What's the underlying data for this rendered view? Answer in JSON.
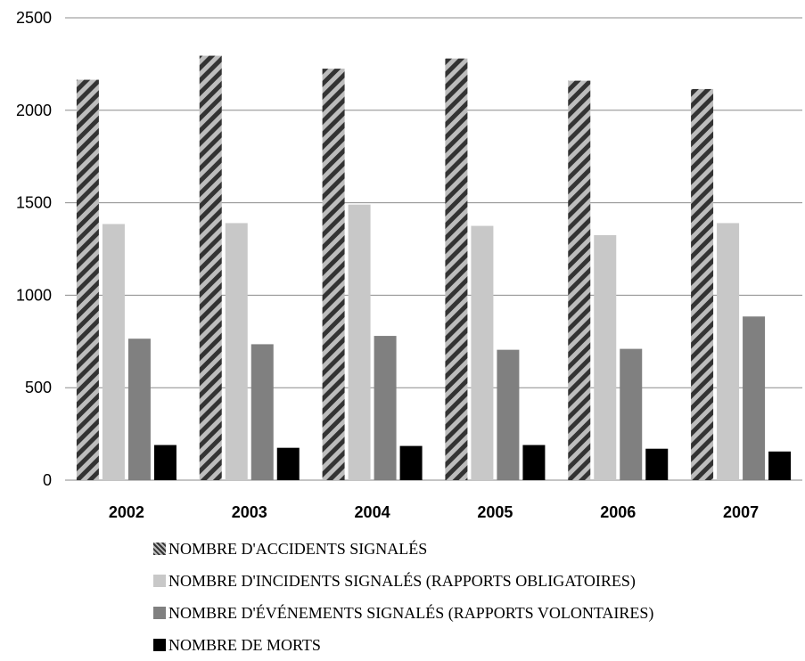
{
  "chart_data": {
    "type": "bar",
    "title": "",
    "xlabel": "",
    "ylabel": "",
    "categories": [
      "2002",
      "2003",
      "2004",
      "2005",
      "2006",
      "2007"
    ],
    "ylim": [
      0,
      2500
    ],
    "yticks": [
      0,
      500,
      1000,
      1500,
      2000,
      2500
    ],
    "grid": true,
    "legend_position": "bottom",
    "series": [
      {
        "name": "NOMBRE D'ACCIDENTS SIGNALÉS",
        "values": [
          2165,
          2295,
          2225,
          2280,
          2160,
          2115
        ],
        "color": "#555555",
        "pattern": "diagonal-hatch"
      },
      {
        "name": "NOMBRE D'INCIDENTS SIGNALÉS (RAPPORTS OBLIGATOIRES)",
        "values": [
          1385,
          1390,
          1490,
          1375,
          1325,
          1390
        ],
        "color": "#c8c8c8"
      },
      {
        "name": "NOMBRE D'ÉVÉNEMENTS SIGNALÉS (RAPPORTS VOLONTAIRES)",
        "values": [
          765,
          735,
          780,
          705,
          710,
          885
        ],
        "color": "#808080"
      },
      {
        "name": "NOMBRE DE MORTS",
        "values": [
          190,
          175,
          185,
          190,
          170,
          155
        ],
        "color": "#000000"
      }
    ]
  }
}
